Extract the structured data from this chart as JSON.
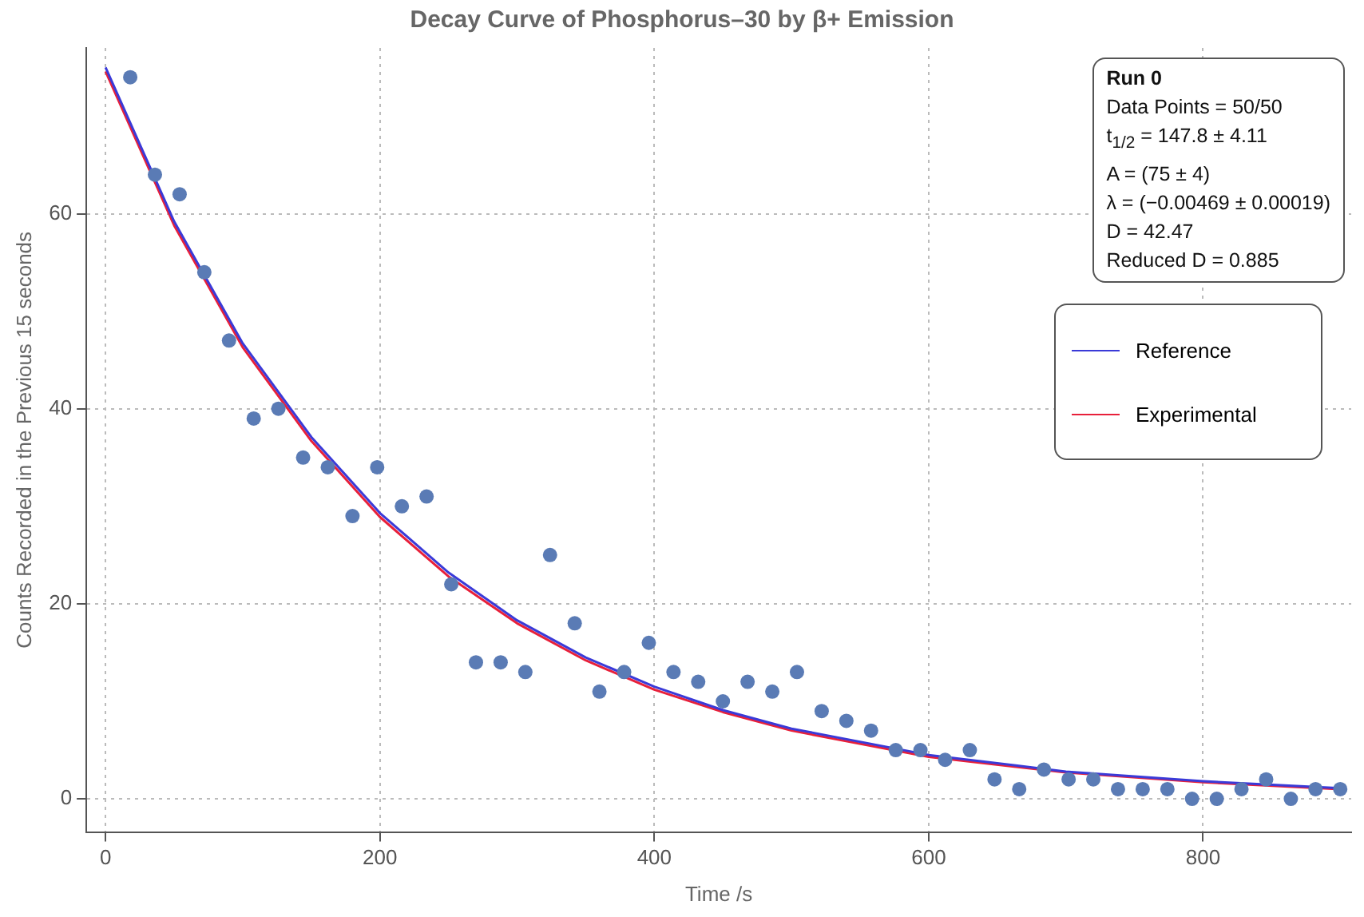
{
  "chart_data": {
    "type": "scatter",
    "title": "Decay Curve of Phosphorus–30 by β+ Emission",
    "xlabel": "Time /s",
    "ylabel": "Counts Recorded in the Previous 15 seconds",
    "x": [
      18,
      36,
      54,
      72,
      90,
      108,
      126,
      144,
      162,
      180,
      198,
      216,
      234,
      252,
      270,
      288,
      306,
      324,
      342,
      360,
      378,
      396,
      414,
      432,
      450,
      468,
      486,
      504,
      522,
      540,
      558,
      576,
      594,
      612,
      630,
      648,
      666,
      684,
      702,
      720,
      738,
      756,
      774,
      792,
      810,
      828,
      846,
      864,
      882,
      900
    ],
    "series": [
      {
        "color": "#5a7bb5",
        "marker": "circle",
        "values": [
          74,
          64,
          62,
          54,
          47,
          39,
          40,
          35,
          34,
          29,
          34,
          30,
          31,
          22,
          14,
          14,
          13,
          25,
          18,
          11,
          13,
          16,
          13,
          12,
          10,
          12,
          11,
          13,
          9,
          8,
          7,
          5,
          5,
          4,
          5,
          2,
          1,
          3,
          2,
          2,
          1,
          1,
          1,
          0,
          0,
          1,
          2,
          0,
          1,
          1
        ]
      },
      {
        "type": "line",
        "name": "Reference",
        "color": "#3a3ad8",
        "marker": "none",
        "x": [
          0,
          50,
          100,
          150,
          200,
          250,
          300,
          350,
          400,
          450,
          500,
          600,
          700,
          800,
          900
        ],
        "values": [
          75,
          59.2,
          46.7,
          37.1,
          29.3,
          23.2,
          18.3,
          14.5,
          11.5,
          9.1,
          7.2,
          4.5,
          2.8,
          1.8,
          1.1
        ]
      },
      {
        "type": "line",
        "name": "Experimental",
        "color": "#e8203a",
        "marker": "none",
        "x": [
          0,
          50,
          100,
          150,
          200,
          250,
          300,
          350,
          400,
          450,
          500,
          600,
          700,
          800,
          900
        ],
        "values": [
          74.6,
          58.8,
          46.3,
          36.7,
          28.9,
          22.8,
          18,
          14.2,
          11.2,
          8.9,
          7,
          4.3,
          2.7,
          1.7,
          1
        ]
      }
    ],
    "xlim": [
      -14,
      908
    ],
    "xticks": [
      0,
      200,
      400,
      600,
      800
    ],
    "ylim": [
      -3.4,
      77
    ],
    "yticks": [
      0,
      20,
      40,
      60
    ],
    "grid": true,
    "legend": "top right",
    "annotations": [
      "Run 0",
      "Data Points = 50/50",
      "t$_{1/2}$ = 147.8 ± 4.11",
      "A = (75 ± 4)",
      "λ = (−0.00469 ± 0.00019)",
      "D = 42.47",
      "Reduced D = 0.885"
    ]
  }
}
